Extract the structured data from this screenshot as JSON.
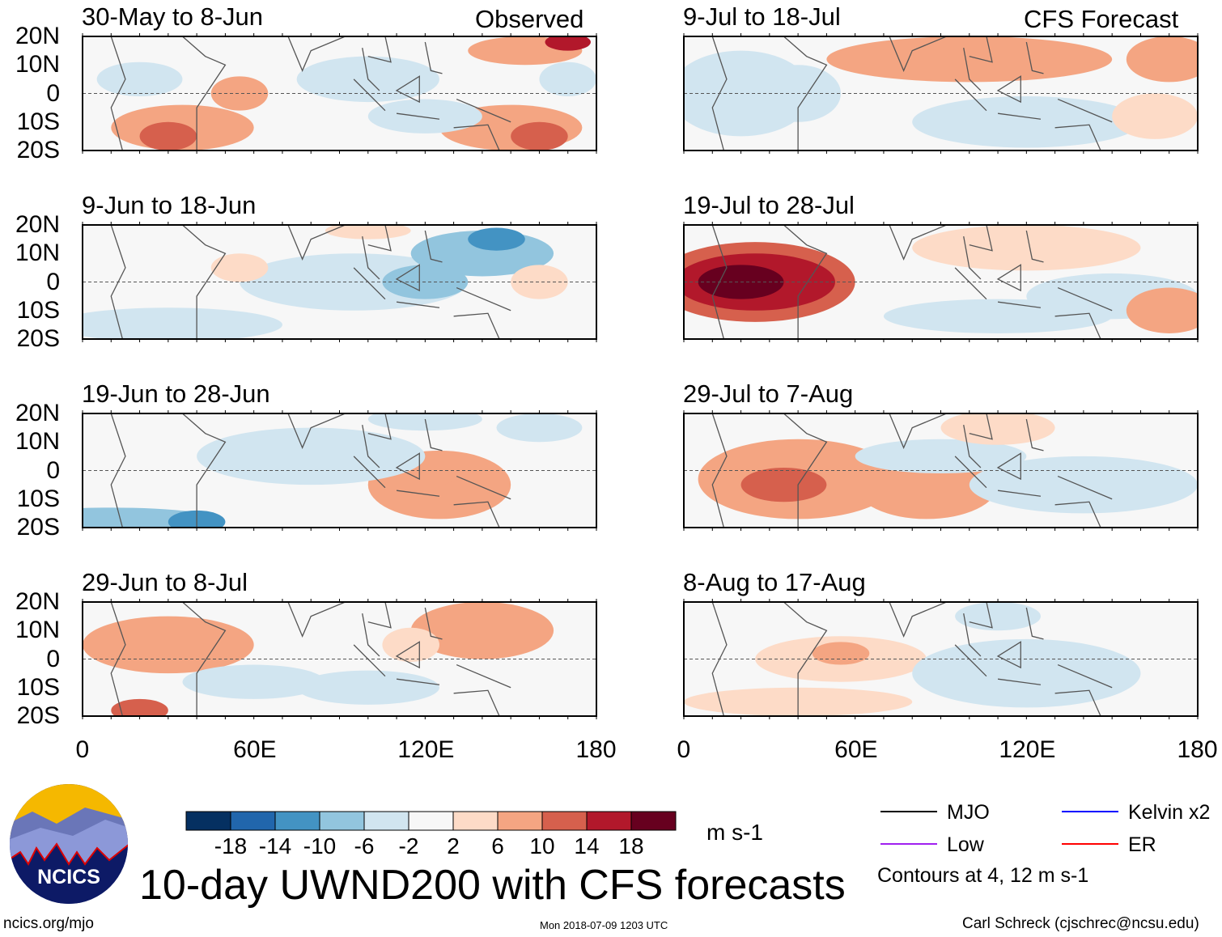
{
  "chart_data": {
    "type": "heatmap",
    "title": "10-day UWND200 with CFS forecasts",
    "units": "m s-1",
    "panel_group_labels": {
      "left": "Observed",
      "right": "CFS Forecast"
    },
    "panels": [
      {
        "label": "30-May to 8-Jun",
        "kind": "observed"
      },
      {
        "label": "9-Jun to 18-Jun",
        "kind": "observed"
      },
      {
        "label": "19-Jun to 28-Jun",
        "kind": "observed"
      },
      {
        "label": "29-Jun to 8-Jul",
        "kind": "observed"
      },
      {
        "label": "9-Jul to 18-Jul",
        "kind": "forecast"
      },
      {
        "label": "19-Jul to 28-Jul",
        "kind": "forecast"
      },
      {
        "label": "29-Jul to 7-Aug",
        "kind": "forecast"
      },
      {
        "label": "8-Aug to 17-Aug",
        "kind": "forecast"
      }
    ],
    "y_ticks": [
      "20N",
      "10N",
      "0",
      "10S",
      "20S"
    ],
    "x_ticks": [
      "0",
      "60E",
      "120E",
      "180"
    ],
    "xlim": [
      0,
      180
    ],
    "ylim": [
      -20,
      20
    ],
    "colorbar": {
      "levels": [
        "-18",
        "-14",
        "-10",
        "-6",
        "-2",
        "2",
        "6",
        "10",
        "14",
        "18"
      ],
      "colors": [
        "#053061",
        "#2166ac",
        "#4393c3",
        "#92c5de",
        "#d1e5f0",
        "#f7f7f7",
        "#fddbc7",
        "#f4a582",
        "#d6604d",
        "#b2182b",
        "#67001f"
      ]
    },
    "legend": [
      {
        "label": "MJO",
        "color": "#000000"
      },
      {
        "label": "Kelvin x2",
        "color": "#0000ff"
      },
      {
        "label": "Low",
        "color": "#a020f0"
      },
      {
        "label": "ER",
        "color": "#ff0000"
      }
    ],
    "contour_note": "Contours at 4, 12 m s-1"
  },
  "footer": {
    "logo_text": "NCICS",
    "url": "ncics.org/mjo",
    "timestamp": "Mon 2018-07-09 1203 UTC",
    "credit": "Carl Schreck (cjschrec@ncsu.edu)"
  }
}
